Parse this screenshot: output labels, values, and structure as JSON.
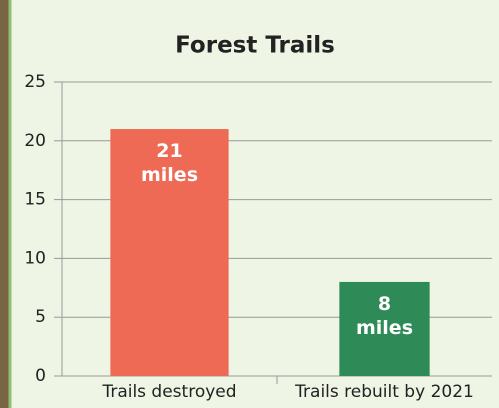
{
  "chart_data": {
    "type": "bar",
    "title": "Forest Trails",
    "categories": [
      "Trails destroyed",
      "Trails rebuilt by 2021"
    ],
    "values": [
      21,
      8
    ],
    "value_labels": [
      "21 miles",
      "8 miles"
    ],
    "colors": [
      "#ee6a55",
      "#2e8b57"
    ],
    "ylim": [
      0,
      25
    ],
    "yticks": [
      0,
      5,
      10,
      15,
      20,
      25
    ],
    "grid": true
  }
}
